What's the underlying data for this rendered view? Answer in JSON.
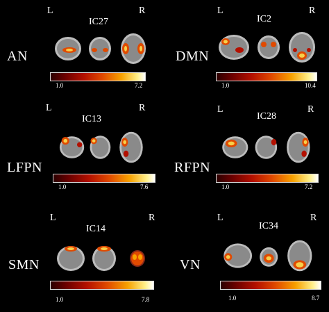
{
  "panels": [
    {
      "network": "AN",
      "component": "IC27",
      "left": "L",
      "right": "R",
      "min": "1.0",
      "max": "7.2"
    },
    {
      "network": "DMN",
      "component": "IC2",
      "left": "L",
      "right": "R",
      "min": "1.0",
      "max": "10.4"
    },
    {
      "network": "LFPN",
      "component": "IC13",
      "left": "L",
      "right": "R",
      "min": "1.0",
      "max": "7.6"
    },
    {
      "network": "RFPN",
      "component": "IC28",
      "left": "L",
      "right": "R",
      "min": "1.0",
      "max": "7.2"
    },
    {
      "network": "SMN",
      "component": "IC14",
      "left": "L",
      "right": "R",
      "min": "1.0",
      "max": "7.8"
    },
    {
      "network": "VN",
      "component": "IC34",
      "left": "L",
      "right": "R",
      "min": "1.0",
      "max": "8.7"
    }
  ],
  "colormap": [
    "#2b0000",
    "#6a0000",
    "#b31000",
    "#e04a00",
    "#f7a100",
    "#fff08a",
    "#ffffff"
  ]
}
